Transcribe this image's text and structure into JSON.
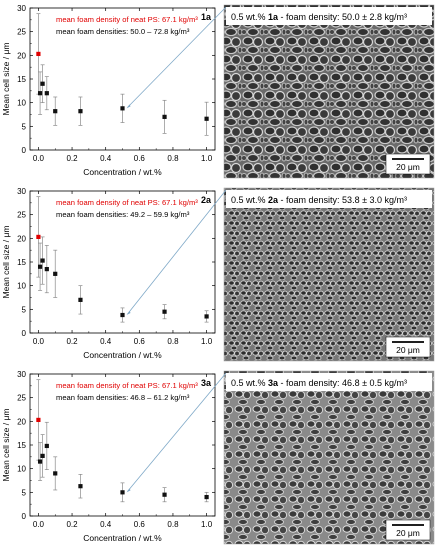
{
  "chart_data": [
    {
      "type": "scatter",
      "panel_label": "1a",
      "xlabel": "Concentration / wt.%",
      "ylabel": "Mean cell size / μm",
      "xlim": [
        -0.05,
        1.05
      ],
      "ylim": [
        0,
        30
      ],
      "xticks": [
        "0.0",
        "0.2",
        "0.4",
        "0.6",
        "0.8",
        "1.0"
      ],
      "yticks": [
        "0",
        "5",
        "10",
        "15",
        "20",
        "25",
        "30"
      ],
      "annotations": [
        {
          "text": "mean foam density of neat PS: 67.1 kg/m³",
          "color": "#e00000"
        },
        {
          "text": "mean foam densities: 50.0 – 72.8 kg/m³",
          "color": "#000000"
        }
      ],
      "neat_point": {
        "x": 0.0,
        "y": 20.3,
        "err": 8.5,
        "color": "#e00000"
      },
      "series": [
        {
          "x": 0.01,
          "y": 12.0,
          "err": 4.5
        },
        {
          "x": 0.025,
          "y": 14.0,
          "err": 4.0
        },
        {
          "x": 0.05,
          "y": 12.0,
          "err": 3.5
        },
        {
          "x": 0.1,
          "y": 8.2,
          "err": 3.0
        },
        {
          "x": 0.25,
          "y": 8.2,
          "err": 3.0
        },
        {
          "x": 0.5,
          "y": 8.8,
          "err": 3.0
        },
        {
          "x": 0.75,
          "y": 7.0,
          "err": 3.5
        },
        {
          "x": 1.0,
          "y": 6.6,
          "err": 3.5
        }
      ],
      "micrograph": {
        "caption_prefix": "0.5 wt.% ",
        "caption_sample": "1a",
        "caption_suffix": " - foam density: 50.0 ± 2.8 kg/m³",
        "scalebar": "20 μm"
      }
    },
    {
      "type": "scatter",
      "panel_label": "2a",
      "xlabel": "Concentration / wt.%",
      "ylabel": "Mean cell size / μm",
      "xlim": [
        -0.05,
        1.05
      ],
      "ylim": [
        0,
        30
      ],
      "xticks": [
        "0.0",
        "0.2",
        "0.4",
        "0.6",
        "0.8",
        "1.0"
      ],
      "yticks": [
        "0",
        "5",
        "10",
        "15",
        "20",
        "25",
        "30"
      ],
      "annotations": [
        {
          "text": "mean foam density of neat PS: 67.1 kg/m³",
          "color": "#e00000"
        },
        {
          "text": "mean foam densities: 49.2 – 59.9 kg/m³",
          "color": "#000000"
        }
      ],
      "neat_point": {
        "x": 0.0,
        "y": 20.3,
        "err": 8.5,
        "color": "#e00000"
      },
      "series": [
        {
          "x": 0.01,
          "y": 14.0,
          "err": 5.0
        },
        {
          "x": 0.025,
          "y": 15.3,
          "err": 5.0
        },
        {
          "x": 0.05,
          "y": 13.5,
          "err": 5.0
        },
        {
          "x": 0.1,
          "y": 12.5,
          "err": 5.0
        },
        {
          "x": 0.25,
          "y": 7.0,
          "err": 3.0
        },
        {
          "x": 0.5,
          "y": 3.8,
          "err": 1.5
        },
        {
          "x": 0.75,
          "y": 4.5,
          "err": 1.5
        },
        {
          "x": 1.0,
          "y": 3.5,
          "err": 1.2
        }
      ],
      "micrograph": {
        "caption_prefix": "0.5 wt.% ",
        "caption_sample": "2a",
        "caption_suffix": " - foam density: 53.8 ± 3.0 kg/m³",
        "scalebar": "20 μm"
      }
    },
    {
      "type": "scatter",
      "panel_label": "3a",
      "xlabel": "Concentration / wt.%",
      "ylabel": "Mean cell size / μm",
      "xlim": [
        -0.05,
        1.05
      ],
      "ylim": [
        0,
        30
      ],
      "xticks": [
        "0.0",
        "0.2",
        "0.4",
        "0.6",
        "0.8",
        "1.0"
      ],
      "yticks": [
        "0",
        "5",
        "10",
        "15",
        "20",
        "25",
        "30"
      ],
      "annotations": [
        {
          "text": "mean foam density of neat PS: 67.1 kg/m³",
          "color": "#e00000"
        },
        {
          "text": "mean foam densities: 46.8 – 61.2 kg/m³",
          "color": "#000000"
        }
      ],
      "neat_point": {
        "x": 0.0,
        "y": 20.3,
        "err": 8.5,
        "color": "#e00000"
      },
      "series": [
        {
          "x": 0.01,
          "y": 11.5,
          "err": 4.0
        },
        {
          "x": 0.025,
          "y": 12.7,
          "err": 4.5
        },
        {
          "x": 0.05,
          "y": 14.8,
          "err": 5.0
        },
        {
          "x": 0.1,
          "y": 9.0,
          "err": 3.5
        },
        {
          "x": 0.25,
          "y": 6.3,
          "err": 2.5
        },
        {
          "x": 0.5,
          "y": 5.0,
          "err": 2.0
        },
        {
          "x": 0.75,
          "y": 4.5,
          "err": 1.5
        },
        {
          "x": 1.0,
          "y": 4.0,
          "err": 1.0
        }
      ],
      "micrograph": {
        "caption_prefix": "0.5 wt.% ",
        "caption_sample": "3a",
        "caption_suffix": " - foam density: 46.8 ± 0.5 kg/m³",
        "scalebar": "20 μm"
      }
    }
  ]
}
